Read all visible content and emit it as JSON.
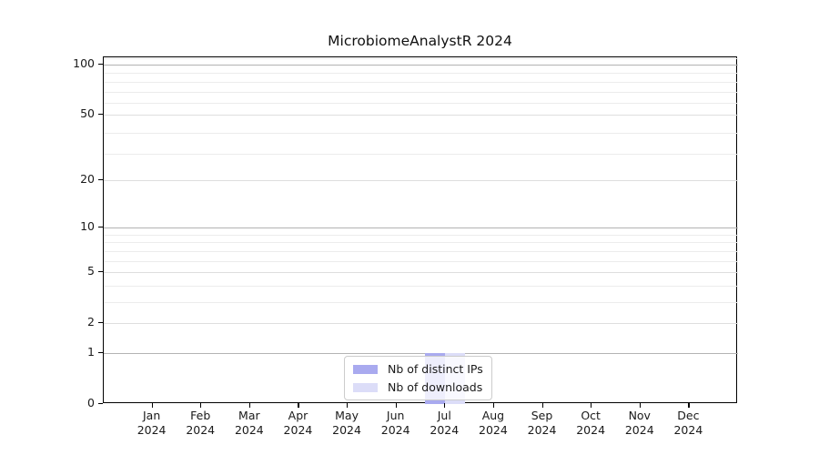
{
  "chart_data": {
    "type": "bar",
    "title": "MicrobiomeAnalystR 2024",
    "categories": [
      "Jan 2024",
      "Feb 2024",
      "Mar 2024",
      "Apr 2024",
      "May 2024",
      "Jun 2024",
      "Jul 2024",
      "Aug 2024",
      "Sep 2024",
      "Oct 2024",
      "Nov 2024",
      "Dec 2024"
    ],
    "series": [
      {
        "name": "Nb of distinct IPs",
        "color": "#a9aaef",
        "values": [
          0,
          0,
          0,
          0,
          0,
          0,
          1,
          0,
          0,
          0,
          0,
          0
        ]
      },
      {
        "name": "Nb of downloads",
        "color": "#dcddf8",
        "values": [
          0,
          0,
          0,
          0,
          0,
          0,
          1,
          0,
          0,
          0,
          0,
          0
        ]
      }
    ],
    "xlabel": "",
    "ylabel": "",
    "yticks": [
      0,
      1,
      2,
      5,
      10,
      20,
      50,
      100
    ],
    "y_scale": "log1p",
    "ylim": [
      0,
      111
    ],
    "minor_gridlines": [
      3,
      4,
      6,
      7,
      8,
      9,
      29,
      39,
      59,
      69,
      79,
      89,
      109
    ],
    "emphasized_gridlines": [
      1,
      10,
      100
    ],
    "grid": true,
    "legend_position": "lower center",
    "colors": {
      "axis_spine": "#000000",
      "gridline_major": "#b3b3b3",
      "gridline_secondary": "#dedede",
      "gridline_minor": "#ececec",
      "legend_border": "#cccccc",
      "text": "#1a1a1a"
    }
  }
}
